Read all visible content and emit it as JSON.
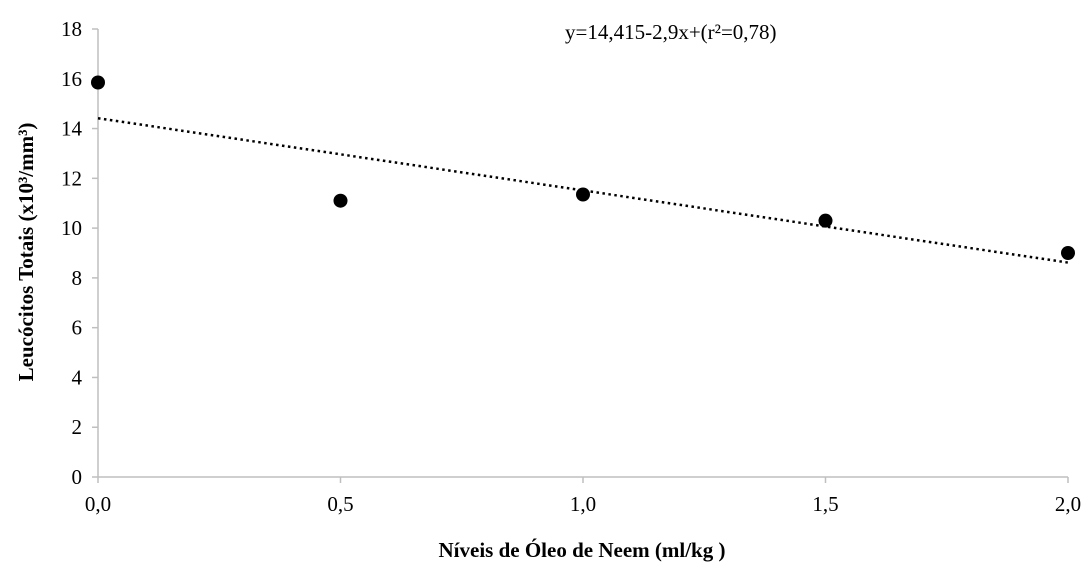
{
  "chart_data": {
    "type": "scatter",
    "x": [
      0.0,
      0.5,
      1.0,
      1.5,
      2.0
    ],
    "y": [
      15.85,
      11.1,
      11.35,
      10.3,
      9.0
    ],
    "trendline": {
      "type": "linear",
      "intercept": 14.415,
      "slope": -2.9,
      "style": "dotted"
    },
    "annotation": "y=14,415-2,9x+(r²=0,78)",
    "xlabel": "Níveis de Óleo de Neem (ml/kg )",
    "ylabel": "Leucócitos Totais  (x10³/mm³)",
    "xlim": [
      0,
      2
    ],
    "ylim": [
      0,
      18
    ],
    "x_ticks": [
      0,
      0.5,
      1,
      1.5,
      2
    ],
    "x_tick_labels": [
      "0,0",
      "0,5",
      "1,0",
      "1,5",
      "2,0"
    ],
    "y_ticks": [
      0,
      2,
      4,
      6,
      8,
      10,
      12,
      14,
      16,
      18
    ],
    "y_tick_labels": [
      "0",
      "2",
      "4",
      "6",
      "8",
      "10",
      "12",
      "14",
      "16",
      "18"
    ],
    "grid": false,
    "legend": "none",
    "colors": {
      "marker": "#000000",
      "trendline": "#000000",
      "axis": "#bfbfbf"
    }
  }
}
